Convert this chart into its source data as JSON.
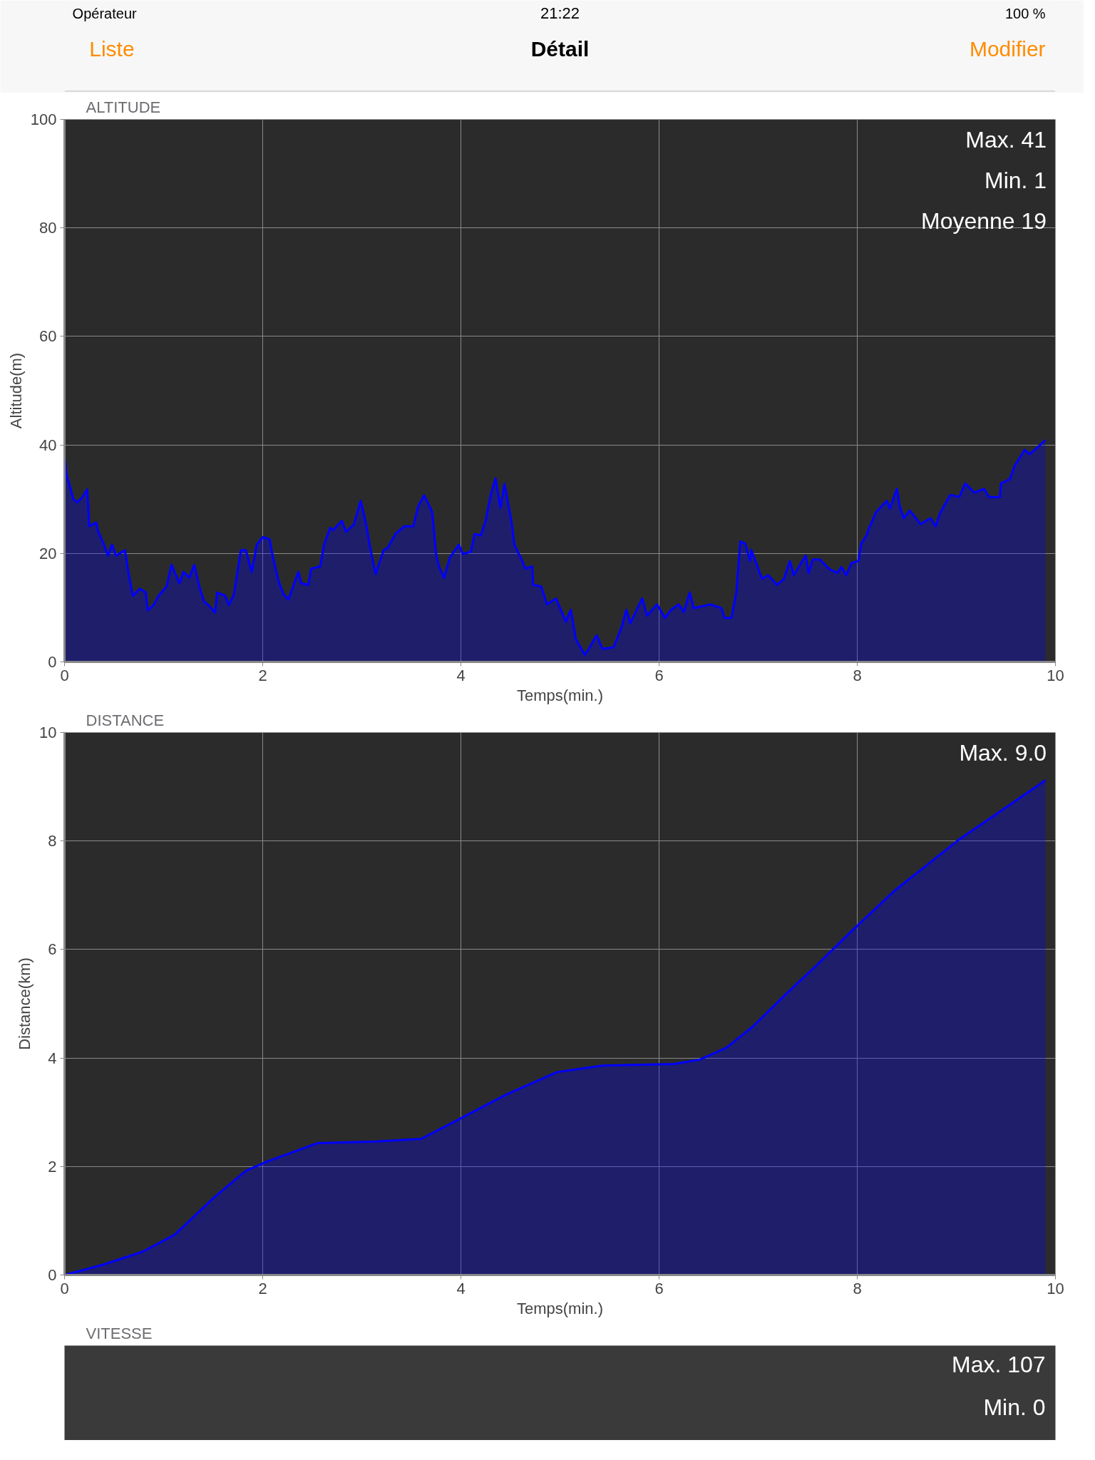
{
  "chart_data": [
    {
      "type": "other",
      "title": "Détail",
      "annotations": [
        "Opérateur",
        "21:22",
        "100 %",
        "Liste",
        "Modifier"
      ]
    },
    {
      "type": "area",
      "title": "ALTITUDE",
      "xlabel": "Temps(min.)",
      "ylabel": "Altitude(m)",
      "color": "#0000ff",
      "xlim": [
        0,
        10
      ],
      "ylim": [
        0,
        100
      ],
      "xticks": [
        0,
        2,
        4,
        6,
        8,
        10
      ],
      "yticks": [
        0,
        20,
        40,
        60,
        80,
        100
      ],
      "grid": true,
      "annotations": [
        "Max.  41",
        "Min.  1",
        "Moyenne  19"
      ],
      "x": [
        0,
        0.02,
        0.06,
        0.09,
        0.13,
        0.18,
        0.23,
        0.25,
        0.32,
        0.34,
        0.39,
        0.44,
        0.48,
        0.52,
        0.61,
        0.65,
        0.69,
        0.76,
        0.82,
        0.84,
        0.9,
        0.95,
        1.03,
        1.08,
        1.16,
        1.2,
        1.26,
        1.31,
        1.36,
        1.41,
        1.45,
        1.52,
        1.54,
        1.62,
        1.66,
        1.71,
        1.78,
        1.83,
        1.89,
        1.94,
        2.0,
        2.07,
        2.1,
        2.16,
        2.21,
        2.26,
        2.36,
        2.39,
        2.46,
        2.49,
        2.58,
        2.62,
        2.68,
        2.71,
        2.8,
        2.84,
        2.92,
        2.99,
        3.04,
        3.09,
        3.14,
        3.22,
        3.26,
        3.34,
        3.43,
        3.52,
        3.57,
        3.63,
        3.71,
        3.75,
        3.78,
        3.83,
        3.89,
        3.98,
        4.02,
        4.1,
        4.14,
        4.2,
        4.25,
        4.3,
        4.35,
        4.4,
        4.44,
        4.51,
        4.54,
        4.62,
        4.65,
        4.72,
        4.73,
        4.81,
        4.87,
        4.96,
        5.06,
        5.11,
        5.16,
        5.25,
        5.3,
        5.37,
        5.43,
        5.54,
        5.62,
        5.67,
        5.71,
        5.83,
        5.88,
        5.98,
        6.06,
        6.12,
        6.2,
        6.25,
        6.31,
        6.35,
        6.52,
        6.63,
        6.66,
        6.73,
        6.78,
        6.82,
        6.87,
        6.92,
        6.93,
        7.04,
        7.1,
        7.19,
        7.26,
        7.32,
        7.36,
        7.48,
        7.51,
        7.55,
        7.62,
        7.72,
        7.8,
        7.84,
        7.89,
        7.94,
        8.01,
        8.04,
        8.09,
        8.12,
        8.19,
        8.26,
        8.3,
        8.33,
        8.4,
        8.43,
        8.47,
        8.53,
        8.64,
        8.74,
        8.79,
        8.84,
        8.94,
        9.03,
        9.09,
        9.18,
        9.28,
        9.33,
        9.44,
        9.45,
        9.54,
        9.59,
        9.69,
        9.74,
        9.81,
        9.9
      ],
      "values": [
        37.8,
        34.5,
        32,
        30,
        29.4,
        30.4,
        31.8,
        25,
        25.7,
        24,
        22,
        19.6,
        21.6,
        19.6,
        20.6,
        15.9,
        12.2,
        13.5,
        12.8,
        9.5,
        10.5,
        12.2,
        13.9,
        17.9,
        14.5,
        16.6,
        15.5,
        17.9,
        13.9,
        11.1,
        10.5,
        9.1,
        12.8,
        12.2,
        10.5,
        12.5,
        20.6,
        20.6,
        16.6,
        21.6,
        23,
        22.6,
        19.6,
        14.9,
        12.5,
        11.5,
        16.6,
        14.5,
        14.2,
        17.2,
        17.6,
        21.6,
        24.7,
        24.3,
        26,
        24,
        25.3,
        29.7,
        25.7,
        20.6,
        16.2,
        20.6,
        21,
        23.6,
        25,
        25,
        28.7,
        30.7,
        27.7,
        19.9,
        17.6,
        15.5,
        19.3,
        21.6,
        19.9,
        20.3,
        23.6,
        23.3,
        26,
        30.7,
        33.8,
        28.4,
        32.8,
        26,
        21.6,
        18.6,
        17.2,
        17.6,
        14.2,
        13.9,
        10.6,
        11.7,
        7.4,
        9.6,
        4.2,
        1.3,
        2.7,
        4.9,
        2.4,
        2.7,
        6.3,
        9.6,
        7.1,
        11.7,
        8.5,
        10.6,
        8.1,
        9.6,
        10.6,
        9.2,
        12.8,
        9.9,
        10.6,
        9.9,
        8.1,
        8.1,
        12.8,
        22.2,
        21.8,
        18.6,
        20.7,
        15.3,
        16,
        14.2,
        15.3,
        18.6,
        16,
        19.6,
        16.4,
        18.9,
        18.9,
        17.1,
        16.4,
        17.5,
        16,
        18.2,
        18.6,
        21.8,
        23.2,
        24.7,
        27.6,
        29,
        29.7,
        28.3,
        31.9,
        28.6,
        26.5,
        27.9,
        25.4,
        26.5,
        25,
        27.6,
        30.8,
        30.4,
        32.9,
        31.2,
        31.9,
        30.4,
        30.4,
        32.9,
        33.7,
        36.2,
        39.1,
        38.3,
        39.4,
        40.9
      ]
    },
    {
      "type": "area",
      "title": "DISTANCE",
      "xlabel": "Temps(min.)",
      "ylabel": "Distance(km)",
      "color": "#0000ff",
      "xlim": [
        0,
        10
      ],
      "ylim": [
        0,
        10
      ],
      "xticks": [
        0,
        2,
        4,
        6,
        8,
        10
      ],
      "yticks": [
        0,
        2,
        4,
        6,
        8,
        10
      ],
      "grid": true,
      "annotations": [
        "Max.  9.0"
      ],
      "x": [
        0,
        0.39,
        0.79,
        1.11,
        1.51,
        1.83,
        2.03,
        2.55,
        3.14,
        3.6,
        3.99,
        4.45,
        4.97,
        5.43,
        6.15,
        6.41,
        6.68,
        6.94,
        7.27,
        7.59,
        7.92,
        8.38,
        9.03,
        9.9
      ],
      "values": [
        0,
        0.19,
        0.43,
        0.74,
        1.43,
        1.92,
        2.08,
        2.43,
        2.46,
        2.51,
        2.88,
        3.32,
        3.74,
        3.86,
        3.89,
        3.97,
        4.19,
        4.57,
        5.16,
        5.71,
        6.3,
        7.09,
        8.03,
        9.12
      ]
    },
    {
      "type": "other",
      "title": "VITESSE",
      "annotations": [
        "Max. 107",
        "Min. 0"
      ]
    }
  ]
}
